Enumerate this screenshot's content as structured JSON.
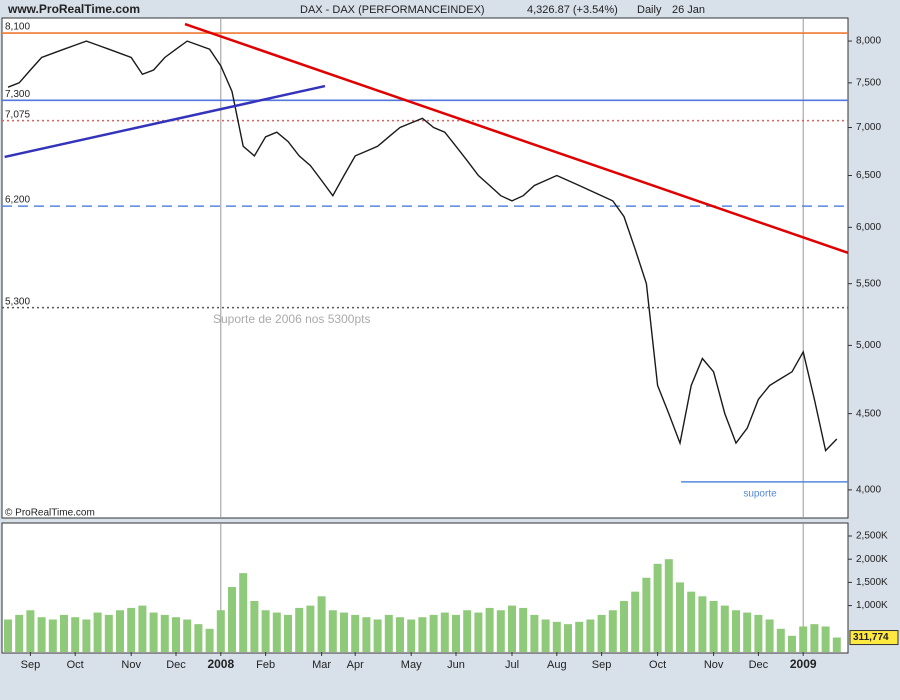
{
  "header": {
    "site": "www.ProRealTime.com",
    "instrument": "DAX - DAX (PERFORMANCEINDEX)",
    "quote": "4,326.87 (+3.54%)",
    "period": "Daily",
    "date": "26 Jan"
  },
  "footer": "© ProRealTime.com",
  "chart_data": {
    "type": "line",
    "yscale": "log",
    "categories": [
      null,
      null,
      "Sep",
      null,
      null,
      null,
      "Oct",
      null,
      null,
      null,
      null,
      "Nov",
      null,
      null,
      null,
      "Dec",
      null,
      null,
      null,
      "2008",
      null,
      null,
      null,
      "Feb",
      null,
      null,
      null,
      null,
      "Mar",
      null,
      null,
      "Apr",
      null,
      null,
      null,
      null,
      "May",
      null,
      null,
      null,
      "Jun",
      null,
      null,
      null,
      null,
      "Jul",
      null,
      null,
      null,
      "Aug",
      null,
      null,
      null,
      "Sep",
      null,
      null,
      null,
      null,
      "Oct",
      null,
      null,
      null,
      null,
      "Nov",
      null,
      null,
      null,
      "Dec",
      null,
      null,
      null,
      "2009",
      null,
      null,
      null
    ],
    "series": [
      {
        "color": "#1a1a1a",
        "values": [
          7450,
          7500,
          7650,
          7800,
          7850,
          7900,
          7950,
          8000,
          7950,
          7900,
          7850,
          7800,
          7600,
          7650,
          7800,
          7900,
          8000,
          7950,
          7900,
          7700,
          7400,
          6800,
          6700,
          6900,
          6950,
          6850,
          6700,
          6600,
          6450,
          6300,
          6500,
          6700,
          6750,
          6800,
          6900,
          7000,
          7050,
          7100,
          7000,
          6950,
          6800,
          6650,
          6500,
          6400,
          6300,
          6250,
          6300,
          6400,
          6450,
          6500,
          6450,
          6400,
          6350,
          6300,
          6250,
          6100,
          5800,
          5500,
          4700,
          4500,
          4300,
          4700,
          4900,
          4800,
          4500,
          4300,
          4400,
          4600,
          4700,
          4750,
          4800,
          4950,
          4600,
          4250,
          4327
        ]
      }
    ],
    "ylim": [
      3830,
      8290
    ],
    "yticks": [
      {
        "value": 4000,
        "label": "4,000"
      },
      {
        "value": 4500,
        "label": "4,500"
      },
      {
        "value": 5000,
        "label": "5,000"
      },
      {
        "value": 5500,
        "label": "5,500"
      },
      {
        "value": 6000,
        "label": "6,000"
      },
      {
        "value": 6500,
        "label": "6,500"
      },
      {
        "value": 7000,
        "label": "7,000"
      },
      {
        "value": 7500,
        "label": "7,500"
      },
      {
        "value": 8000,
        "label": "8,000"
      }
    ],
    "levels": [
      {
        "value": 8100,
        "label": "8,100",
        "color": "#f07830",
        "style": "solid"
      },
      {
        "value": 7300,
        "label": "7,300",
        "color": "#5577dd",
        "style": "solid"
      },
      {
        "value": 7075,
        "label": "7,075",
        "color": "#e06060",
        "style": "dotted"
      },
      {
        "value": 6200,
        "label": "6,200",
        "color": "#5588dd",
        "style": "dashed"
      },
      {
        "value": 5300,
        "label": "5,300",
        "color": "#555555",
        "style": "dotted",
        "note": "Suporte de 2006 nos 5300pts"
      }
    ],
    "support": {
      "value": 4050,
      "label": "suporte",
      "color": "#5588dd",
      "start": 60.1
    },
    "trendlines": [
      {
        "from": [
          15.8,
          8213
        ],
        "to": [
          75,
          5768
        ],
        "color": "#e00000"
      },
      {
        "from": [
          -0.3,
          6689
        ],
        "to": [
          28.3,
          7463
        ],
        "color": "#3333bb"
      }
    ],
    "volume": {
      "type": "bar",
      "color": "#8fc97a",
      "values": [
        700000,
        800000,
        900000,
        750000,
        700000,
        800000,
        750000,
        700000,
        850000,
        800000,
        900000,
        950000,
        1000000,
        850000,
        800000,
        750000,
        700000,
        600000,
        500000,
        900000,
        1400000,
        1700000,
        1100000,
        900000,
        850000,
        800000,
        950000,
        1000000,
        1200000,
        900000,
        850000,
        800000,
        750000,
        700000,
        800000,
        750000,
        700000,
        750000,
        800000,
        850000,
        800000,
        900000,
        850000,
        950000,
        900000,
        1000000,
        950000,
        800000,
        700000,
        650000,
        600000,
        650000,
        700000,
        800000,
        900000,
        1100000,
        1300000,
        1600000,
        1900000,
        2000000,
        1500000,
        1300000,
        1200000,
        1100000,
        1000000,
        900000,
        850000,
        800000,
        700000,
        500000,
        350000,
        550000,
        600000,
        550000,
        311774
      ],
      "value_labels": [
        null,
        null,
        null,
        null,
        null,
        null,
        null,
        null,
        null,
        null,
        null,
        null,
        null,
        null,
        null,
        null,
        null,
        null,
        null,
        null,
        null,
        null,
        null,
        null,
        null,
        null,
        null,
        null,
        null,
        null,
        null,
        null,
        null,
        null,
        null,
        null,
        null,
        null,
        null,
        null,
        null,
        null,
        null,
        null,
        null,
        null,
        null,
        null,
        null,
        null,
        null,
        null,
        null,
        null,
        null,
        null,
        null,
        null,
        null,
        null,
        null,
        null,
        null,
        null,
        null,
        null,
        null,
        null,
        null,
        null,
        null,
        null,
        null,
        null,
        "311,774"
      ],
      "ylim": [
        0,
        2780000
      ],
      "yticks": [
        {
          "value": 1000000,
          "label": "1,000K"
        },
        {
          "value": 1500000,
          "label": "1,500K"
        },
        {
          "value": 2000000,
          "label": "2,000K"
        },
        {
          "value": 2500000,
          "label": "2,500K"
        }
      ]
    }
  }
}
